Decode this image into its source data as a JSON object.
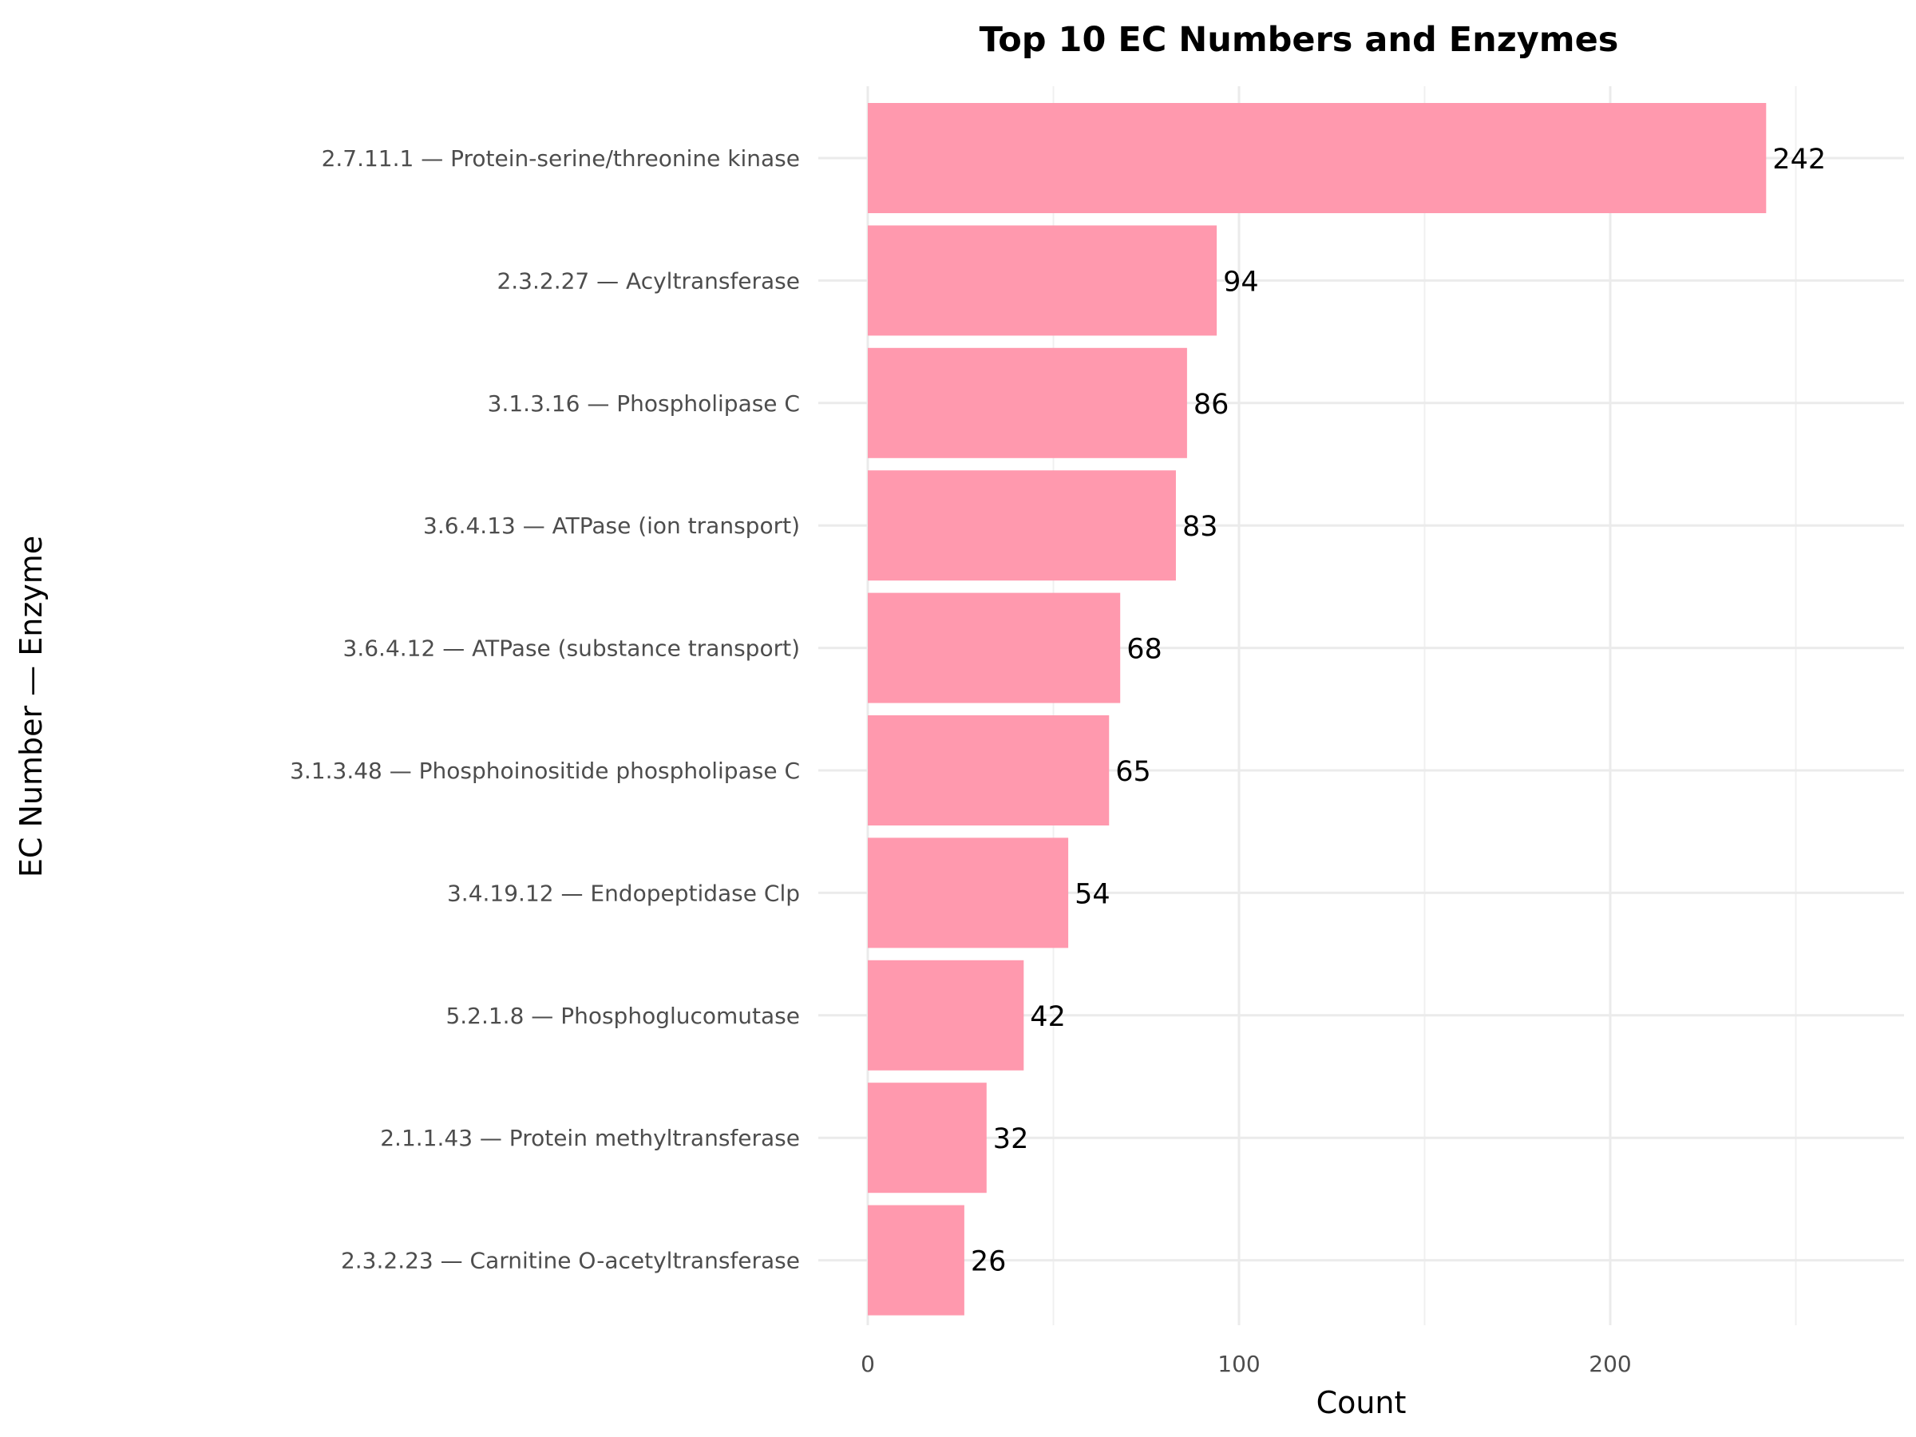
{
  "chart_data": {
    "type": "bar",
    "orientation": "horizontal",
    "title": "Top 10 EC Numbers and Enzymes",
    "xlabel": "Count",
    "ylabel": "EC Number — Enzyme",
    "categories": [
      "2.7.11.1 — Protein-serine/threonine kinase",
      "2.3.2.27 — Acyltransferase",
      "3.1.3.16 — Phospholipase C",
      "3.6.4.13 — ATPase (ion transport)",
      "3.6.4.12 — ATPase (substance transport)",
      "3.1.3.48 — Phosphoinositide phospholipase C",
      "3.4.19.12 — Endopeptidase Clp",
      "5.2.1.8 — Phosphoglucomutase",
      "2.1.1.43 — Protein methyltransferase",
      "2.3.2.23 — Carnitine O-acetyltransferase"
    ],
    "values": [
      242,
      94,
      86,
      83,
      68,
      65,
      54,
      42,
      32,
      26
    ],
    "xlim": [
      0,
      280
    ],
    "xticks": [
      0,
      100,
      200
    ],
    "minor_xticks": [
      50,
      150,
      250
    ],
    "grid": true,
    "legend": "none",
    "bar_color": "#ff99ae"
  }
}
